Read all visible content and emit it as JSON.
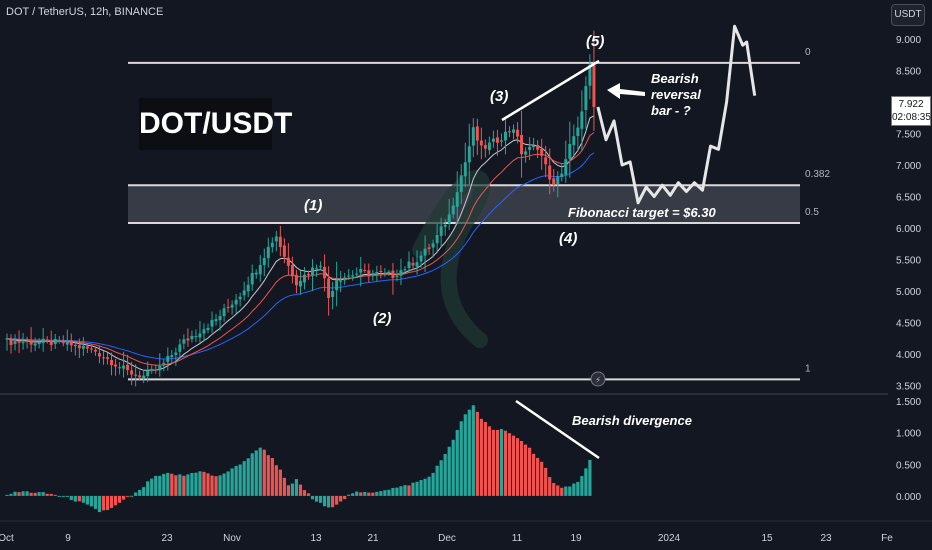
{
  "header": {
    "symbol": "DOT / TetherUS, 12h, BINANCE"
  },
  "price_scale": {
    "currency_button": "USDT",
    "last_price": "7.922",
    "countdown": "02:08:35"
  },
  "colors": {
    "background": "#131722",
    "up": "#26a69a",
    "down": "#ef5350",
    "ma_fast": "#ef5350",
    "ma_mid": "#c9c9c9",
    "ma_slow": "#2962ff",
    "level_line": "#d9d9d9",
    "zone_fill": "#4b4f5a"
  },
  "annotations": {
    "title_box": "DOT/USDT",
    "wave1": "(1)",
    "wave2": "(2)",
    "wave3": "(3)",
    "wave4": "(4)",
    "wave5": "(5)",
    "reversal": "Bearish reversal bar - ?",
    "fib_target": "Fibonacci target = $6.30",
    "divergence": "Bearish divergence"
  },
  "chart_data": [
    {
      "type": "candlestick",
      "title": "DOT / TetherUS, 12h, BINANCE",
      "x_tick_labels": [
        "Oct",
        "9",
        "23",
        "Nov",
        "13",
        "21",
        "Dec",
        "11",
        "19",
        "2024",
        "15",
        "23",
        "Fe"
      ],
      "y_ticks": [
        3.5,
        4.0,
        4.5,
        5.0,
        5.5,
        6.0,
        6.5,
        7.0,
        7.5,
        8.0,
        8.5,
        9.0
      ],
      "y_tick_labels": [
        "3.500",
        "4.000",
        "4.500",
        "5.000",
        "5.500",
        "6.000",
        "6.500",
        "7.000",
        "7.500",
        "8.000",
        "8.500",
        "9.000"
      ],
      "ylim": [
        3.4,
        9.3
      ],
      "last_price": 7.922,
      "price_path_waypoints": [
        [
          0,
          4.2
        ],
        [
          14,
          4.18
        ],
        [
          22,
          4.05
        ],
        [
          30,
          3.72
        ],
        [
          34,
          3.65
        ],
        [
          38,
          3.78
        ],
        [
          44,
          4.2
        ],
        [
          52,
          4.55
        ],
        [
          58,
          4.95
        ],
        [
          62,
          5.35
        ],
        [
          66,
          5.8
        ],
        [
          67,
          5.88
        ],
        [
          70,
          5.4
        ],
        [
          72,
          5.15
        ],
        [
          76,
          5.35
        ],
        [
          78,
          5.45
        ],
        [
          80,
          4.9
        ],
        [
          82,
          5.2
        ],
        [
          88,
          5.3
        ],
        [
          96,
          5.25
        ],
        [
          102,
          5.5
        ],
        [
          106,
          5.75
        ],
        [
          110,
          6.2
        ],
        [
          114,
          7.05
        ],
        [
          116,
          7.55
        ],
        [
          118,
          7.25
        ],
        [
          122,
          7.4
        ],
        [
          126,
          7.6
        ],
        [
          128,
          7.2
        ],
        [
          132,
          7.3
        ],
        [
          136,
          6.65
        ],
        [
          138,
          6.9
        ],
        [
          140,
          7.3
        ],
        [
          142,
          7.55
        ],
        [
          143,
          7.9
        ],
        [
          145,
          8.55
        ],
        [
          146,
          7.92
        ]
      ],
      "moving_averages": [
        "fast",
        "mid",
        "slow"
      ],
      "fibonacci": [
        {
          "label": "0",
          "price": 8.62
        },
        {
          "label": "0.382",
          "price": 6.68
        },
        {
          "label": "0.5",
          "price": 6.08
        },
        {
          "label": "1",
          "price": 3.6
        }
      ],
      "target_zone": [
        6.08,
        6.68
      ],
      "projection_path": [
        [
          147,
          7.92
        ],
        [
          149,
          7.4
        ],
        [
          151,
          7.7
        ],
        [
          153,
          7.0
        ],
        [
          155,
          7.05
        ],
        [
          157,
          6.4
        ],
        [
          159,
          6.65
        ],
        [
          161,
          6.5
        ],
        [
          163,
          6.68
        ],
        [
          165,
          6.52
        ],
        [
          167,
          6.72
        ],
        [
          169,
          6.58
        ],
        [
          171,
          6.72
        ],
        [
          173,
          6.6
        ],
        [
          175,
          7.3
        ],
        [
          177,
          7.25
        ],
        [
          179,
          8.0
        ],
        [
          181,
          9.2
        ],
        [
          183,
          8.9
        ],
        [
          184,
          8.95
        ],
        [
          186,
          8.1
        ]
      ]
    },
    {
      "type": "bar",
      "title": "",
      "y_ticks": [
        0.0,
        0.5,
        1.0,
        1.5
      ],
      "y_tick_labels": [
        "0.000",
        "0.500",
        "1.000",
        "1.500"
      ],
      "ylim": [
        -0.35,
        1.55
      ],
      "histogram_waypoints": [
        [
          0,
          0.03
        ],
        [
          4,
          0.07
        ],
        [
          8,
          0.05
        ],
        [
          12,
          0.02
        ],
        [
          16,
          -0.05
        ],
        [
          20,
          -0.15
        ],
        [
          23,
          -0.25
        ],
        [
          26,
          -0.2
        ],
        [
          30,
          -0.03
        ],
        [
          33,
          0.08
        ],
        [
          36,
          0.28
        ],
        [
          40,
          0.35
        ],
        [
          44,
          0.32
        ],
        [
          48,
          0.4
        ],
        [
          52,
          0.3
        ],
        [
          56,
          0.42
        ],
        [
          60,
          0.6
        ],
        [
          63,
          0.78
        ],
        [
          66,
          0.6
        ],
        [
          68,
          0.4
        ],
        [
          70,
          0.15
        ],
        [
          72,
          0.25
        ],
        [
          74,
          0.1
        ],
        [
          76,
          -0.05
        ],
        [
          80,
          -0.2
        ],
        [
          83,
          -0.08
        ],
        [
          86,
          0.05
        ],
        [
          90,
          0.05
        ],
        [
          94,
          0.1
        ],
        [
          98,
          0.14
        ],
        [
          102,
          0.22
        ],
        [
          105,
          0.3
        ],
        [
          108,
          0.55
        ],
        [
          111,
          0.9
        ],
        [
          114,
          1.3
        ],
        [
          116,
          1.42
        ],
        [
          118,
          1.22
        ],
        [
          121,
          1.05
        ],
        [
          124,
          1.05
        ],
        [
          127,
          0.9
        ],
        [
          130,
          0.75
        ],
        [
          133,
          0.55
        ],
        [
          136,
          0.2
        ],
        [
          138,
          0.12
        ],
        [
          141,
          0.18
        ],
        [
          143,
          0.3
        ],
        [
          145,
          0.55
        ]
      ]
    }
  ]
}
